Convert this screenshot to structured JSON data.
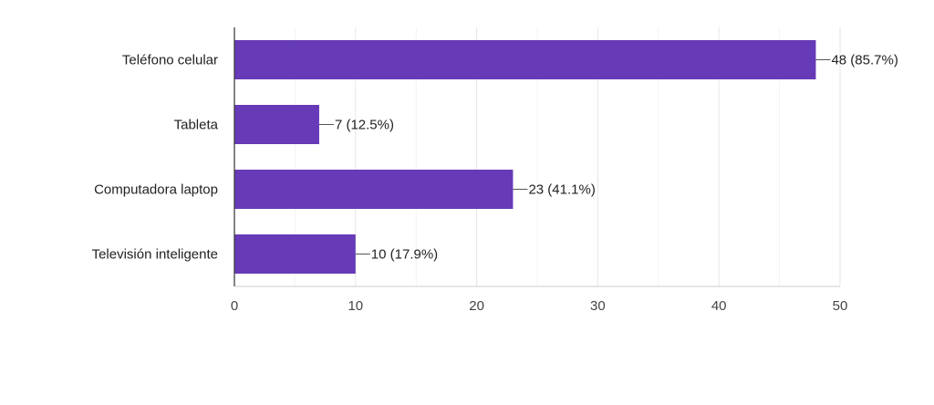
{
  "colors": {
    "bar": "#673ab7",
    "grid": "#e6e6e6",
    "axis": "#333333",
    "leader": "#555555"
  },
  "chart_data": {
    "type": "bar",
    "orientation": "horizontal",
    "categories": [
      "Teléfono celular",
      "Tableta",
      "Computadora laptop",
      "Televisión inteligente"
    ],
    "values": [
      48,
      7,
      23,
      10
    ],
    "data_labels": [
      "48 (85.7%)",
      "7 (12.5%)",
      "23 (41.1%)",
      "10 (17.9%)"
    ],
    "xlim": [
      0,
      50
    ],
    "x_ticks": [
      0,
      10,
      20,
      30,
      40,
      50
    ],
    "grid": true,
    "title": "",
    "xlabel": "",
    "ylabel": ""
  }
}
